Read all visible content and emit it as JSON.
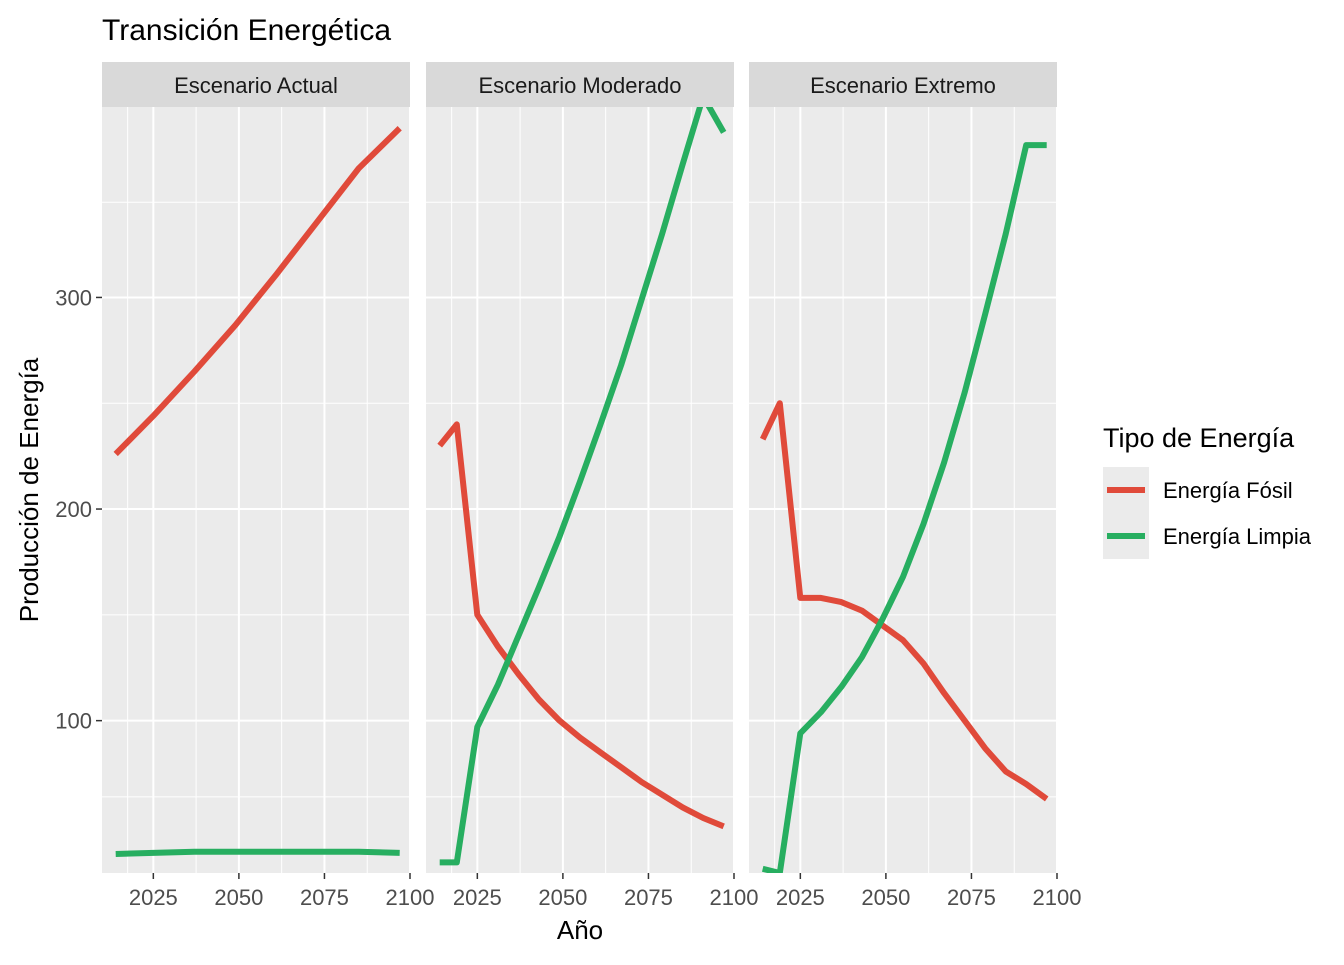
{
  "chart_data": {
    "type": "line",
    "title": "Transición Energética",
    "xlabel": "Año",
    "ylabel": "Producción de Energía",
    "xlim": [
      2010,
      2100
    ],
    "ylim": [
      28,
      390
    ],
    "x_ticks": [
      2025,
      2050,
      2075,
      2100
    ],
    "y_ticks": [
      100,
      200,
      300
    ],
    "grid": true,
    "legend": {
      "title": "Tipo de Energía",
      "position": "right",
      "entries": [
        {
          "label": "Energía Fósil",
          "color": "#E04A3A"
        },
        {
          "label": "Energía Limpia",
          "color": "#27AE60"
        }
      ]
    },
    "facets": [
      {
        "label": "Escenario Actual",
        "series": [
          {
            "name": "Energía Fósil",
            "x": [
              2014,
              2025,
              2037,
              2049,
              2061,
              2073,
              2085,
              2097
            ],
            "y": [
              226,
              244,
              265,
              287,
              311,
              336,
              361,
              380
            ]
          },
          {
            "name": "Energía Limpia",
            "x": [
              2014,
              2025,
              2037,
              2049,
              2061,
              2073,
              2085,
              2097
            ],
            "y": [
              37,
              37.5,
              38,
              38,
              38,
              38,
              38,
              37.5
            ]
          }
        ]
      },
      {
        "label": "Escenario Moderado",
        "series": [
          {
            "name": "Energía Fósil",
            "x": [
              2014,
              2019,
              2025,
              2031,
              2037,
              2043,
              2049,
              2055,
              2061,
              2067,
              2073,
              2079,
              2085,
              2091,
              2097
            ],
            "y": [
              230,
              240,
              150,
              135,
              122,
              110,
              100,
              92,
              85,
              78,
              71,
              65,
              59,
              54,
              50
            ]
          },
          {
            "name": "Energía Limpia",
            "x": [
              2014,
              2019,
              2025,
              2031,
              2037,
              2043,
              2049,
              2055,
              2061,
              2067,
              2073,
              2079,
              2085,
              2091,
              2097
            ],
            "y": [
              33,
              33,
              97,
              117,
              140,
              163,
              187,
              213,
              240,
              268,
              299,
              330,
              363,
              395,
              378
            ]
          }
        ]
      },
      {
        "label": "Escenario Extremo",
        "series": [
          {
            "name": "Energía Fósil",
            "x": [
              2014,
              2019,
              2025,
              2031,
              2037,
              2043,
              2049,
              2055,
              2061,
              2067,
              2073,
              2079,
              2085,
              2091,
              2097
            ],
            "y": [
              233,
              250,
              158,
              158,
              156,
              152,
              145,
              138,
              127,
              113,
              100,
              87,
              76,
              70,
              63
            ]
          },
          {
            "name": "Energía Limpia",
            "x": [
              2014,
              2019,
              2025,
              2031,
              2037,
              2043,
              2049,
              2055,
              2061,
              2067,
              2073,
              2079,
              2085,
              2091,
              2097
            ],
            "y": [
              30,
              28,
              94,
              104,
              116,
              130,
              148,
              168,
              193,
              222,
              255,
              292,
              330,
              372,
              372
            ]
          }
        ]
      }
    ]
  }
}
